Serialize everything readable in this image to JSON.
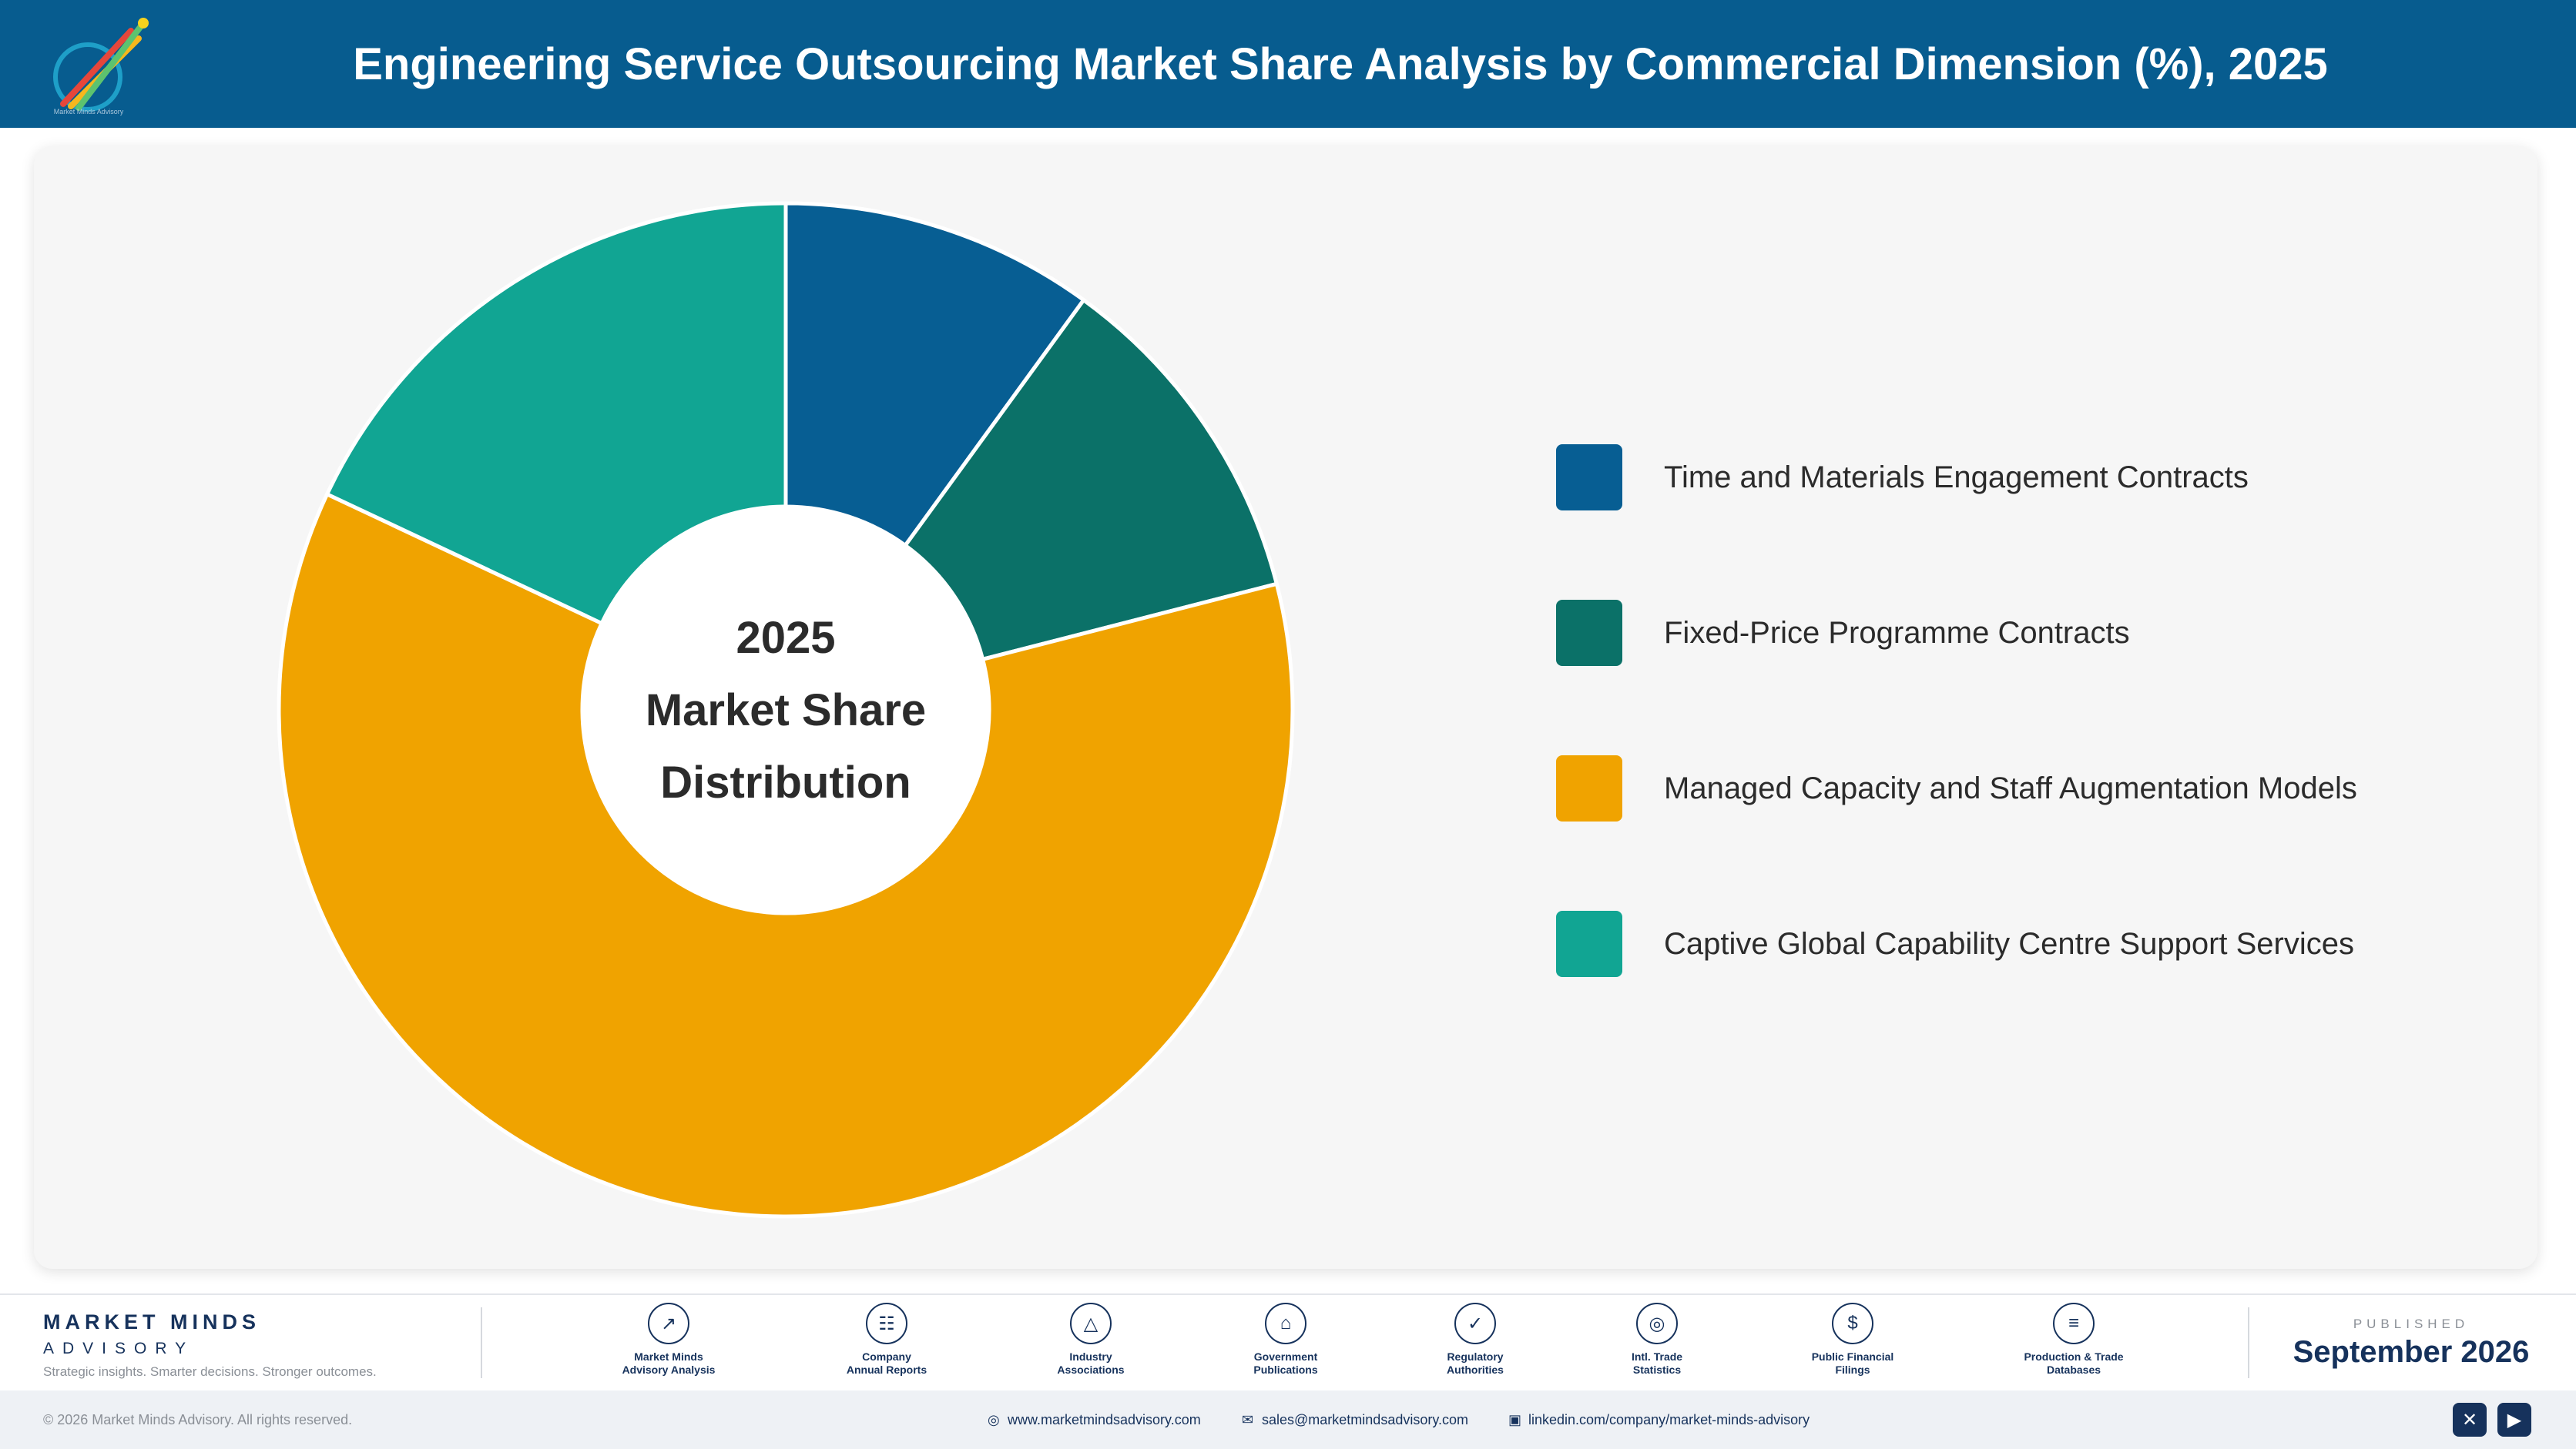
{
  "header": {
    "title": "Engineering Service Outsourcing Market Share Analysis by Commercial Dimension (%), 2025",
    "logo_text": "Market Minds Advisory"
  },
  "chart_data": {
    "type": "pie",
    "variant": "donut",
    "title": "Engineering Service Outsourcing Market Share Analysis by Commercial Dimension (%), 2025",
    "center_text": [
      "2025",
      "Market Share",
      "Distribution"
    ],
    "legend_position": "right",
    "categories": [
      "Time and Materials Engagement Contracts",
      "Fixed-Price Programme Contracts",
      "Managed Capacity and Staff Augmentation Models",
      "Captive Global Capability Centre Support Services"
    ],
    "values": [
      10,
      11,
      61,
      18
    ],
    "colors": [
      "#075e93",
      "#0b7168",
      "#f0a300",
      "#11a593"
    ]
  },
  "footer": {
    "brand_name": "MARKET MINDS",
    "brand_sub": "ADVISORY",
    "tagline": "Strategic insights. Smarter decisions. Stronger outcomes.",
    "sources": [
      {
        "line1": "Market Minds",
        "line2": "Advisory Analysis",
        "icon": "trend-chart-icon"
      },
      {
        "line1": "Company",
        "line2": "Annual Reports",
        "icon": "document-icon"
      },
      {
        "line1": "Industry",
        "line2": "Associations",
        "icon": "network-icon"
      },
      {
        "line1": "Government",
        "line2": "Publications",
        "icon": "government-building-icon"
      },
      {
        "line1": "Regulatory",
        "line2": "Authorities",
        "icon": "shield-check-icon"
      },
      {
        "line1": "Intl. Trade",
        "line2": "Statistics",
        "icon": "globe-icon"
      },
      {
        "line1": "Public Financial",
        "line2": "Filings",
        "icon": "dollar-coin-icon"
      },
      {
        "line1": "Production & Trade",
        "line2": "Databases",
        "icon": "database-icon"
      }
    ],
    "published_label": "PUBLISHED",
    "published_date": "September 2026",
    "copyright": "© 2026 Market Minds Advisory. All rights reserved.",
    "website": "www.marketmindsadvisory.com",
    "email": "sales@marketmindsadvisory.com",
    "linkedin": "linkedin.com/company/market-minds-advisory"
  }
}
